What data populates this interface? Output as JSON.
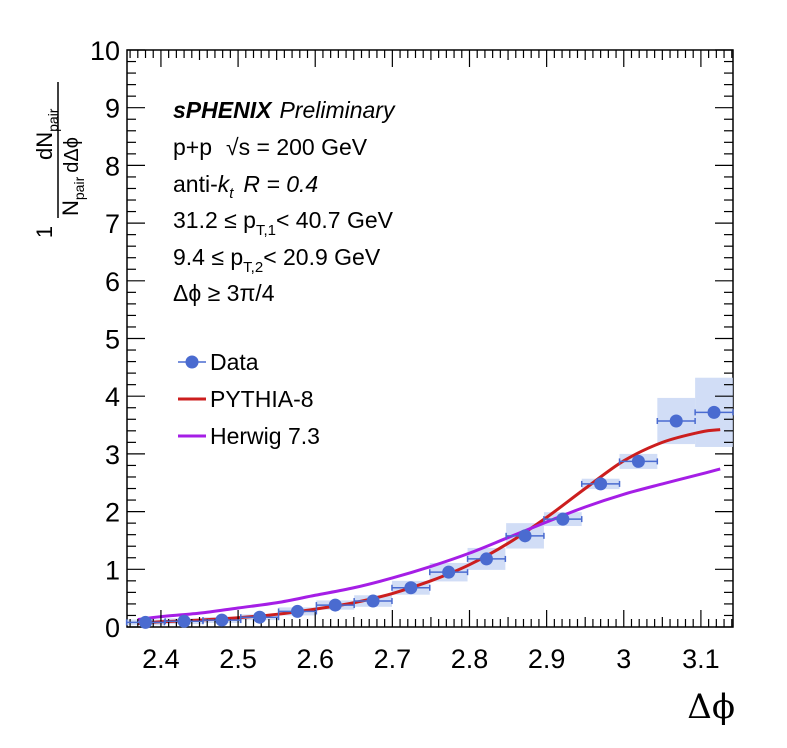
{
  "annotations": {
    "experiment": "sPHENIX",
    "status": "Preliminary",
    "collision": "p+p",
    "energy": "√s = 200 GeV",
    "algo_prefix": "anti-",
    "algo_k": "k",
    "algo_sub": "t",
    "radius": "R = 0.4",
    "pt1_pre": "31.2 ≤ p",
    "pt1_sub": "T,1",
    "pt1_post": "< 40.7 GeV",
    "pt2_pre": "9.4 ≤ p",
    "pt2_sub": "T,2",
    "pt2_post": "< 20.9 GeV",
    "dphi_cut": "Δϕ  ≥ 3π/4"
  },
  "axes": {
    "xlabel": "Δϕ",
    "ylabel_one": "1",
    "ylabel_N": "N",
    "ylabel_pair": "pair",
    "ylabel_num_d": "dN",
    "ylabel_num_pair": "pair",
    "ylabel_den": "dΔϕ"
  },
  "chart_data": {
    "type": "scatter",
    "xlim": [
      2.356,
      3.1416
    ],
    "ylim": [
      0,
      10
    ],
    "xticks": [
      2.4,
      2.5,
      2.6,
      2.7,
      2.8,
      2.9,
      3,
      3.1
    ],
    "xtick_labels": [
      "2.4",
      "2.5",
      "2.6",
      "2.7",
      "2.8",
      "2.9",
      "3",
      "3.1"
    ],
    "yticks": [
      0,
      1,
      2,
      3,
      4,
      5,
      6,
      7,
      8,
      9,
      10
    ],
    "ytick_labels": [
      "0",
      "1",
      "2",
      "3",
      "4",
      "5",
      "6",
      "7",
      "8",
      "9",
      "10"
    ],
    "legend_position": "middle-left",
    "series": [
      {
        "name": "Data",
        "kind": "points",
        "color": "#4a6bd0",
        "box_color": "#c9d7f5",
        "x": [
          2.38,
          2.43,
          2.479,
          2.528,
          2.577,
          2.626,
          2.675,
          2.724,
          2.773,
          2.822,
          2.872,
          2.921,
          2.97,
          3.019,
          3.068,
          3.117
        ],
        "xerr": 0.0245,
        "y": [
          0.08,
          0.1,
          0.12,
          0.17,
          0.27,
          0.38,
          0.45,
          0.68,
          0.95,
          1.18,
          1.58,
          1.87,
          2.48,
          2.87,
          3.57,
          3.72
        ],
        "syst": [
          0.05,
          0.05,
          0.05,
          0.05,
          0.07,
          0.08,
          0.1,
          0.12,
          0.16,
          0.19,
          0.22,
          0.12,
          0.09,
          0.13,
          0.4,
          0.6
        ]
      },
      {
        "name": "PYTHIA-8",
        "kind": "line",
        "color": "#cc1e1e",
        "x": [
          2.37,
          2.4,
          2.45,
          2.5,
          2.55,
          2.6,
          2.65,
          2.7,
          2.75,
          2.8,
          2.85,
          2.9,
          2.95,
          3.0,
          3.05,
          3.1,
          3.125
        ],
        "y": [
          0.06,
          0.09,
          0.12,
          0.16,
          0.22,
          0.31,
          0.42,
          0.58,
          0.8,
          1.08,
          1.45,
          1.9,
          2.4,
          2.88,
          3.2,
          3.38,
          3.42
        ]
      },
      {
        "name": "Herwig 7.3",
        "kind": "line",
        "color": "#a51ee6",
        "x": [
          2.37,
          2.4,
          2.45,
          2.5,
          2.55,
          2.6,
          2.65,
          2.7,
          2.75,
          2.8,
          2.85,
          2.9,
          2.95,
          3.0,
          3.05,
          3.1,
          3.125
        ],
        "y": [
          0.13,
          0.18,
          0.24,
          0.33,
          0.42,
          0.55,
          0.68,
          0.85,
          1.05,
          1.28,
          1.55,
          1.82,
          2.08,
          2.3,
          2.48,
          2.65,
          2.74
        ]
      }
    ]
  }
}
